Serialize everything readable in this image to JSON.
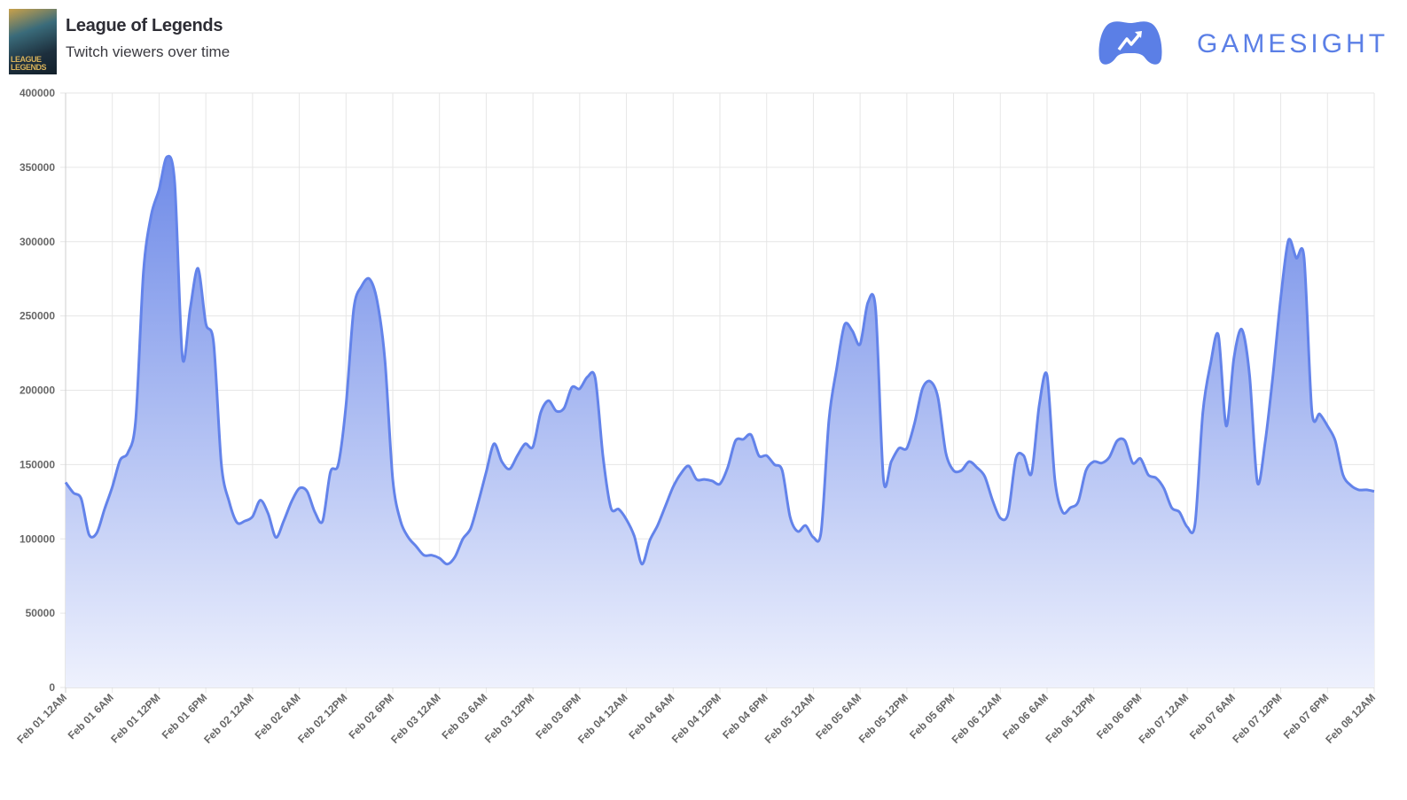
{
  "header": {
    "game_title": "League of Legends",
    "subtitle": "Twitch viewers over time",
    "cover_art_text": "LEAGUE OF LEGENDS",
    "brand_name": "GAMESIGHT"
  },
  "colors": {
    "line": "#6383ea",
    "fill_top": "#6f8be8",
    "fill_bottom": "#eef1fd",
    "brand": "#5b7fe6"
  },
  "chart_data": {
    "type": "area",
    "title": "Twitch viewers over time",
    "xlabel": "",
    "ylabel": "",
    "ylim": [
      0,
      400000
    ],
    "grid": true,
    "y_ticks": [
      "0",
      "50000",
      "100000",
      "150000",
      "200000",
      "250000",
      "300000",
      "350000",
      "400000"
    ],
    "x_ticks": [
      "Feb 01 12AM",
      "Feb 01 6AM",
      "Feb 01 12PM",
      "Feb 01 6PM",
      "Feb 02 12AM",
      "Feb 02 6AM",
      "Feb 02 12PM",
      "Feb 02 6PM",
      "Feb 03 12AM",
      "Feb 03 6AM",
      "Feb 03 12PM",
      "Feb 03 6PM",
      "Feb 04 12AM",
      "Feb 04 6AM",
      "Feb 04 12PM",
      "Feb 04 6PM",
      "Feb 05 12AM",
      "Feb 05 6AM",
      "Feb 05 12PM",
      "Feb 05 6PM",
      "Feb 06 12AM",
      "Feb 06 6AM",
      "Feb 06 12PM",
      "Feb 06 6PM",
      "Feb 07 12AM",
      "Feb 07 6AM",
      "Feb 07 12PM",
      "Feb 07 6PM",
      "Feb 08 12AM"
    ],
    "x_range": [
      "Feb 01 12AM",
      "Feb 08 12AM"
    ],
    "x_interval": "hourly",
    "values": [
      138000,
      131000,
      127000,
      103000,
      104000,
      120000,
      135000,
      153000,
      158000,
      180000,
      280000,
      318000,
      335000,
      357000,
      340000,
      222000,
      255000,
      282000,
      245000,
      232000,
      150000,
      125000,
      111000,
      112000,
      115000,
      126000,
      117000,
      101000,
      112000,
      125000,
      134000,
      132000,
      118000,
      112000,
      145000,
      150000,
      190000,
      255000,
      270000,
      275000,
      260000,
      220000,
      140000,
      112000,
      101000,
      95000,
      89000,
      89000,
      87000,
      83000,
      88000,
      100000,
      107000,
      125000,
      145000,
      164000,
      152000,
      147000,
      156000,
      164000,
      162000,
      185000,
      193000,
      186000,
      188000,
      202000,
      201000,
      209000,
      208000,
      155000,
      121000,
      120000,
      113000,
      102000,
      83000,
      99000,
      109000,
      122000,
      135000,
      144000,
      149000,
      140000,
      140000,
      139000,
      137000,
      148000,
      166000,
      167000,
      170000,
      156000,
      156000,
      150000,
      146000,
      115000,
      105000,
      109000,
      101000,
      105000,
      180000,
      215000,
      244000,
      240000,
      231000,
      259000,
      254000,
      140000,
      152000,
      161000,
      161000,
      178000,
      201000,
      206000,
      195000,
      158000,
      146000,
      146000,
      152000,
      148000,
      142000,
      126000,
      114000,
      117000,
      154000,
      156000,
      144000,
      190000,
      210000,
      140000,
      118000,
      121000,
      125000,
      146000,
      152000,
      151000,
      155000,
      166000,
      166000,
      151000,
      154000,
      143000,
      141000,
      134000,
      121000,
      118000,
      108000,
      110000,
      185000,
      218000,
      237000,
      176000,
      222000,
      241000,
      210000,
      138000,
      165000,
      210000,
      262000,
      301000,
      289000,
      289000,
      186000,
      184000,
      176000,
      166000,
      143000,
      136000,
      133000,
      133000,
      132000
    ]
  }
}
